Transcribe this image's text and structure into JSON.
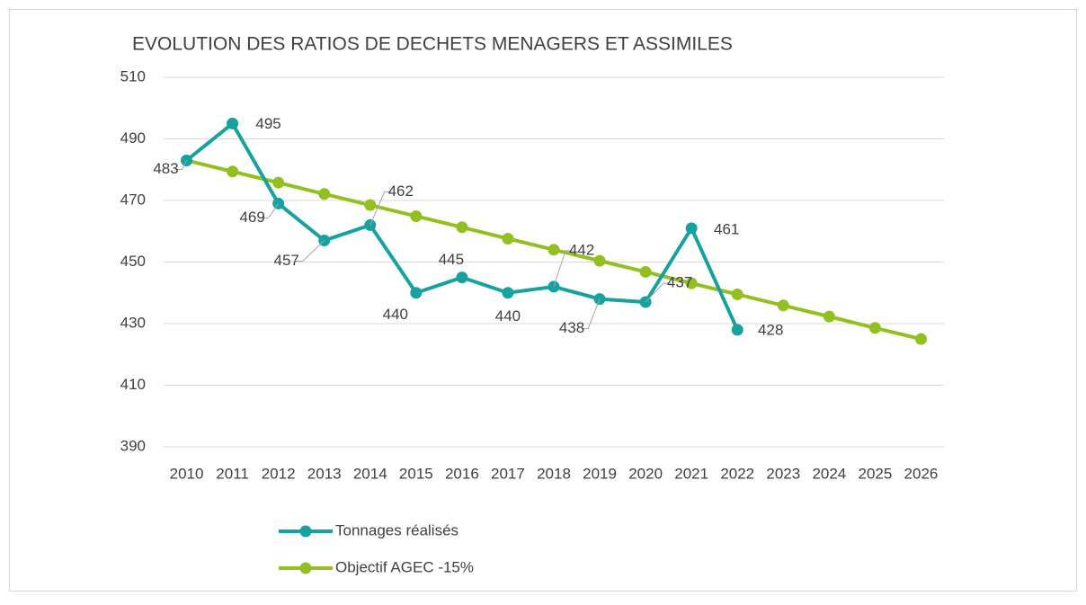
{
  "chart_data": {
    "type": "line",
    "title": "EVOLUTION DES RATIOS DE DECHETS MENAGERS ET ASSIMILES",
    "categories": [
      "2010",
      "2011",
      "2012",
      "2013",
      "2014",
      "2015",
      "2016",
      "2017",
      "2018",
      "2019",
      "2020",
      "2021",
      "2022",
      "2023",
      "2024",
      "2025",
      "2026"
    ],
    "series": [
      {
        "name": "Tonnages réalisés",
        "color": "#17a2a0",
        "values": [
          483,
          495,
          469,
          457,
          462,
          440,
          445,
          440,
          442,
          438,
          437,
          461,
          428,
          null,
          null,
          null,
          null
        ]
      },
      {
        "name": "Objectif AGEC -15%",
        "color": "#92c020",
        "values": [
          483,
          479.4,
          475.8,
          472.1,
          468.5,
          464.9,
          461.3,
          457.6,
          454,
          450.4,
          446.8,
          443.1,
          439.5,
          435.9,
          432.3,
          428.6,
          425
        ]
      }
    ],
    "ylim": [
      390,
      510
    ],
    "yticks": [
      390,
      410,
      430,
      450,
      470,
      490,
      510
    ],
    "grid": true,
    "legend": "bottom",
    "data_labels_series": 0
  }
}
